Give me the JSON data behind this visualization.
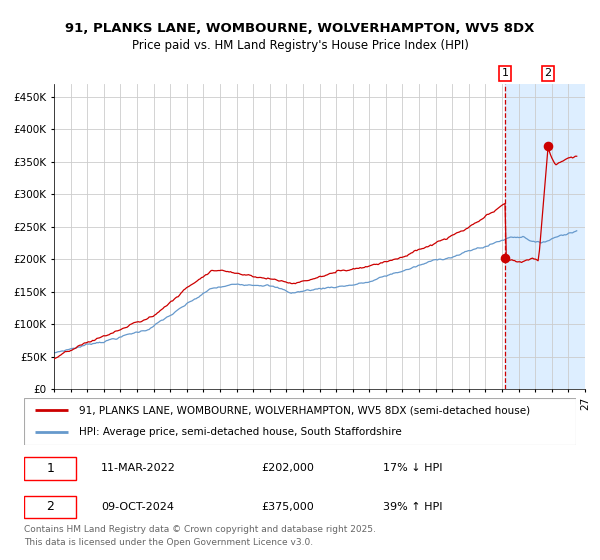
{
  "title": "91, PLANKS LANE, WOMBOURNE, WOLVERHAMPTON, WV5 8DX",
  "subtitle": "Price paid vs. HM Land Registry's House Price Index (HPI)",
  "ylim": [
    0,
    470000
  ],
  "xlim_start": 1995.0,
  "xlim_end": 2027.0,
  "yticks": [
    0,
    50000,
    100000,
    150000,
    200000,
    250000,
    300000,
    350000,
    400000,
    450000
  ],
  "ytick_labels": [
    "£0",
    "£50K",
    "£100K",
    "£150K",
    "£200K",
    "£250K",
    "£300K",
    "£350K",
    "£400K",
    "£450K"
  ],
  "hpi_color": "#6699cc",
  "price_color": "#cc0000",
  "marker_color": "#cc0000",
  "vline_color": "#cc0000",
  "shade_color": "#ddeeff",
  "grid_color": "#cccccc",
  "background_color": "#ffffff",
  "point1_date": 2022.19,
  "point1_price": 202000,
  "point2_date": 2024.77,
  "point2_price": 375000,
  "point1_hpi": 236340,
  "point2_hpi": 269784,
  "legend_line1": "91, PLANKS LANE, WOMBOURNE, WOLVERHAMPTON, WV5 8DX (semi-detached house)",
  "legend_line2": "HPI: Average price, semi-detached house, South Staffordshire",
  "table_row1": [
    "1",
    "11-MAR-2022",
    "£202,000",
    "17% ↓ HPI"
  ],
  "table_row2": [
    "2",
    "09-OCT-2024",
    "£375,000",
    "39% ↑ HPI"
  ],
  "footer": "Contains HM Land Registry data © Crown copyright and database right 2025.\nThis data is licensed under the Open Government Licence v3.0.",
  "title_fontsize": 9.5,
  "subtitle_fontsize": 8.5,
  "tick_fontsize": 7.5,
  "legend_fontsize": 7.5,
  "table_fontsize": 8,
  "footer_fontsize": 6.5
}
